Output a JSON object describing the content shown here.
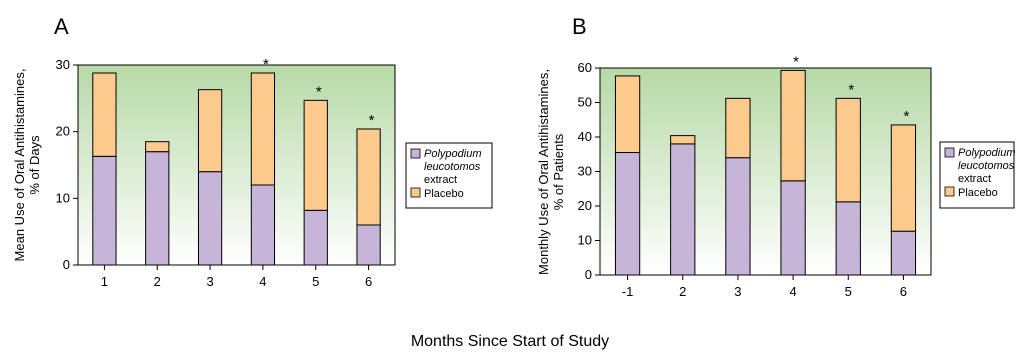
{
  "colors": {
    "series_drug": "#c6b5d8",
    "series_placebo": "#fdca8e",
    "plot_bg_top": "#b6d9a6",
    "plot_bg_bottom": "#ffffff"
  },
  "shared_xlabel": "Months Since Start of Study",
  "legend": {
    "drug_line1": "Polypodium",
    "drug_line2": "leucotomos",
    "drug_line3": "extract",
    "placebo": "Placebo"
  },
  "chart_data": [
    {
      "panel": "A",
      "type": "bar",
      "stacked": true,
      "ylabel_line1": "Mean Use of Oral Antihistamines,",
      "ylabel_line2": "% of Days",
      "ylim": [
        0,
        30
      ],
      "yticks": [
        0,
        10,
        20,
        30
      ],
      "categories": [
        "1",
        "2",
        "3",
        "4",
        "5",
        "6"
      ],
      "series": [
        {
          "name": "Polypodium leucotomos extract",
          "values": [
            16.3,
            17.0,
            14.0,
            12.0,
            8.2,
            6.0
          ]
        },
        {
          "name": "Placebo",
          "values": [
            12.5,
            1.5,
            12.3,
            16.8,
            16.5,
            14.4
          ]
        }
      ],
      "significant": [
        false,
        false,
        false,
        true,
        true,
        true
      ],
      "star_label": "*",
      "grid": false,
      "legend_position": "right"
    },
    {
      "panel": "B",
      "type": "bar",
      "stacked": true,
      "ylabel_line1": "Monthly Use of Oral Antihistamines,",
      "ylabel_line2": "% of Patients",
      "ylim": [
        0,
        60
      ],
      "yticks": [
        0,
        10,
        20,
        30,
        40,
        50,
        60
      ],
      "categories": [
        "-1",
        "2",
        "3",
        "4",
        "5",
        "6"
      ],
      "series": [
        {
          "name": "Polypodium leucotomos extract",
          "values": [
            35.5,
            38.0,
            34.0,
            27.3,
            21.2,
            12.7
          ]
        },
        {
          "name": "Placebo",
          "values": [
            22.2,
            2.4,
            17.2,
            32.0,
            30.0,
            30.8
          ]
        }
      ],
      "significant": [
        false,
        false,
        false,
        true,
        true,
        true
      ],
      "star_label": "*",
      "grid": false,
      "legend_position": "right"
    }
  ]
}
